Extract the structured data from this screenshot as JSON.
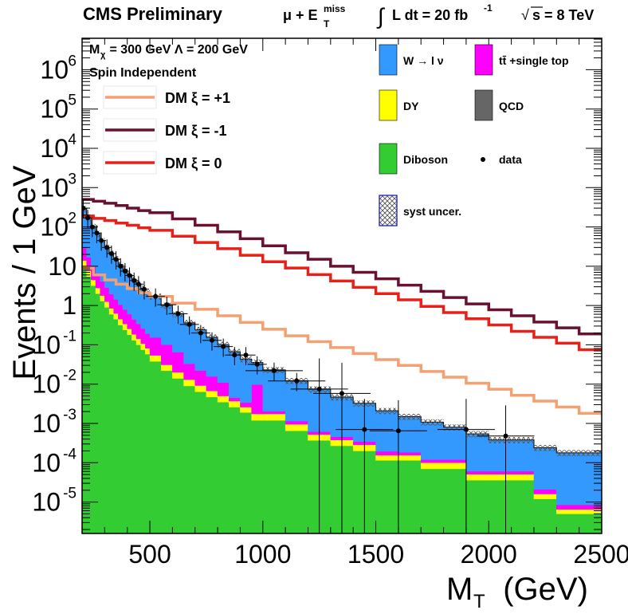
{
  "header": {
    "title": "CMS Preliminary",
    "channel_mu": "μ + E",
    "channel_sub": "T",
    "channel_sup": "miss",
    "lumi_integral": "∫",
    "lumi_text": "L dt = 20 fb",
    "lumi_sup": "-1",
    "energy_sqrt": "√",
    "energy_text": "s = 8 TeV"
  },
  "annotations": {
    "mass_line": "M",
    "mass_sub": "χ",
    "mass_rest": " = 300 GeV Λ = 200 GeV",
    "spin": "Spin Independent"
  },
  "legend_left": [
    {
      "label": "DM  ξ = +1",
      "color": "#f4a070"
    },
    {
      "label": "DM  ξ = -1",
      "color": "#6b1030"
    },
    {
      "label": "DM  ξ = 0",
      "color": "#e8201a"
    }
  ],
  "legend_right": [
    {
      "label": "W → l ν",
      "color": "#3399ff",
      "kind": "box"
    },
    {
      "label": "tt̄ +single top",
      "color": "#ff00ff",
      "kind": "box"
    },
    {
      "label": "DY",
      "color": "#ffff00",
      "kind": "box"
    },
    {
      "label": "QCD",
      "color": "#666666",
      "kind": "box"
    },
    {
      "label": "Diboson",
      "color": "#33cc33",
      "kind": "box"
    },
    {
      "label": "data",
      "color": "#000000",
      "kind": "marker"
    },
    {
      "label": "syst uncer.",
      "color": "#2b2bbf",
      "kind": "hatch"
    }
  ],
  "chart_data": {
    "type": "bar",
    "title": "CMS Preliminary",
    "xlabel": "M",
    "xlabel_sub": "T",
    "xlabel_unit": "  (GeV)",
    "ylabel": "Events / 1 GeV",
    "xlim": [
      200,
      2500
    ],
    "ylim_log10": [
      -5.8,
      6.8
    ],
    "x_ticks": [
      "500",
      "1000",
      "1500",
      "2000",
      "2500"
    ],
    "x_tick_values": [
      500,
      1000,
      1500,
      2000,
      2500
    ],
    "y_ticks": [
      {
        "base": "10",
        "exp": "6",
        "value": 6
      },
      {
        "base": "10",
        "exp": "5",
        "value": 5
      },
      {
        "base": "10",
        "exp": "4",
        "value": 4
      },
      {
        "base": "10",
        "exp": "3",
        "value": 3
      },
      {
        "base": "10",
        "exp": "2",
        "value": 2
      },
      {
        "base": "10",
        "exp": "",
        "value": 1
      },
      {
        "base": "1",
        "exp": "",
        "value": 0
      },
      {
        "base": "10",
        "exp": "-1",
        "value": -1
      },
      {
        "base": "10",
        "exp": "-2",
        "value": -2
      },
      {
        "base": "10",
        "exp": "-3",
        "value": -3
      },
      {
        "base": "10",
        "exp": "-4",
        "value": -4
      },
      {
        "base": "10",
        "exp": "-5",
        "value": -5
      }
    ],
    "bin_edges": [
      200,
      220,
      240,
      260,
      280,
      300,
      320,
      340,
      360,
      380,
      400,
      420,
      440,
      460,
      480,
      500,
      550,
      600,
      650,
      700,
      750,
      800,
      850,
      900,
      950,
      1000,
      1100,
      1200,
      1300,
      1400,
      1500,
      1600,
      1700,
      1800,
      1900,
      2000,
      2200,
      2300,
      2500
    ],
    "stack": [
      {
        "name": "Diboson",
        "color": "#33cc33",
        "values": [
          10,
          5.5,
          3.2,
          2,
          1.3,
          0.9,
          0.6,
          0.45,
          0.32,
          0.24,
          0.18,
          0.13,
          0.1,
          0.075,
          0.058,
          0.038,
          0.022,
          0.014,
          0.009,
          0.0064,
          0.0047,
          0.0035,
          0.0026,
          0.0019,
          0.0012,
          0.0012,
          0.00065,
          0.00037,
          0.00027,
          0.0002,
          0.000115,
          0.000115,
          7e-05,
          7e-05,
          3.6e-05,
          3.6e-05,
          1.2e-05,
          5e-06
        ]
      },
      {
        "name": "DY",
        "color": "#ffff00",
        "values": [
          4,
          2.2,
          1.3,
          0.8,
          0.5,
          0.35,
          0.25,
          0.18,
          0.13,
          0.1,
          0.075,
          0.055,
          0.042,
          0.032,
          0.024,
          0.016,
          0.009,
          0.006,
          0.004,
          0.0028,
          0.002,
          0.0015,
          0.0011,
          0.0007,
          0.00055,
          0.00055,
          0.0003,
          0.00015,
          0.00011,
          8.5e-05,
          4e-05,
          4e-05,
          3e-05,
          3e-05,
          1.5e-05,
          1.5e-05,
          4e-06,
          1.5e-06
        ]
      },
      {
        "name": "tt̄ +single top",
        "color": "#ff00ff",
        "values": [
          15,
          9,
          5.5,
          3.5,
          2.3,
          1.6,
          1.1,
          0.8,
          0.6,
          0.45,
          0.35,
          0.26,
          0.2,
          0.15,
          0.11,
          0.1,
          0.07,
          0.045,
          0.02,
          0.013,
          0.009,
          0.006,
          0.0008,
          0.0008,
          0.008,
          0.0003,
          0.0002,
          0.0001,
          8e-05,
          6e-05,
          4e-05,
          3e-05,
          2e-05,
          2e-05,
          1e-05,
          1e-05,
          5e-06,
          2e-06
        ]
      },
      {
        "name": "W → l ν",
        "color": "#3399ff",
        "values": [
          250,
          150,
          90,
          60,
          40,
          27,
          19,
          14,
          10,
          7.5,
          5.5,
          4.2,
          3.2,
          2.5,
          1.9,
          1.55,
          0.9,
          0.55,
          0.33,
          0.22,
          0.14,
          0.09,
          0.062,
          0.04,
          0.026,
          0.021,
          0.011,
          0.0068,
          0.0042,
          0.0029,
          0.0019,
          0.0013,
          0.00096,
          0.00068,
          0.00048,
          0.00032,
          0.00022,
          0.00017
        ]
      },
      {
        "name": "QCD",
        "color": "#666666",
        "values": [
          6,
          3,
          1.5,
          0.7,
          0.35,
          0.18,
          0.09,
          0.05,
          0.03,
          0.02,
          0.012,
          0.008,
          0.005,
          0.003,
          0.002,
          0.001,
          0.0005,
          0.0003,
          0.0002,
          0.0001,
          0,
          0,
          0,
          0,
          0,
          0,
          0,
          0,
          0,
          0,
          0,
          0,
          0,
          0,
          0,
          0,
          0,
          0
        ]
      }
    ],
    "syst_rel": 0.18,
    "data": [
      {
        "x": 205,
        "y": 300
      },
      {
        "x": 225,
        "y": 170
      },
      {
        "x": 245,
        "y": 100
      },
      {
        "x": 265,
        "y": 70
      },
      {
        "x": 285,
        "y": 45
      },
      {
        "x": 310,
        "y": 30
      },
      {
        "x": 330,
        "y": 21
      },
      {
        "x": 350,
        "y": 15
      },
      {
        "x": 370,
        "y": 10
      },
      {
        "x": 390,
        "y": 7.5
      },
      {
        "x": 410,
        "y": 5.8
      },
      {
        "x": 430,
        "y": 4.3
      },
      {
        "x": 450,
        "y": 3.5
      },
      {
        "x": 475,
        "y": 2.6
      },
      {
        "x": 525,
        "y": 1.7
      },
      {
        "x": 575,
        "y": 1.05
      },
      {
        "x": 625,
        "y": 0.62
      },
      {
        "x": 675,
        "y": 0.33
      },
      {
        "x": 725,
        "y": 0.2
      },
      {
        "x": 775,
        "y": 0.13
      },
      {
        "x": 825,
        "y": 0.09
      },
      {
        "x": 875,
        "y": 0.055
      },
      {
        "x": 925,
        "y": 0.055
      },
      {
        "x": 975,
        "y": 0.032
      },
      {
        "x": 1050,
        "y": 0.022
      },
      {
        "x": 1150,
        "y": 0.012
      },
      {
        "x": 1250,
        "y": 0.0075
      },
      {
        "x": 1350,
        "y": 0.0058
      },
      {
        "x": 1450,
        "y": 0.0007
      },
      {
        "x": 1600,
        "y": 0.00065
      },
      {
        "x": 1900,
        "y": 0.0007
      },
      {
        "x": 2075,
        "y": 0.00048
      }
    ],
    "signal": [
      {
        "name": "DM  ξ = +1",
        "color": "#f4a070",
        "edges": [
          200,
          250,
          300,
          350,
          400,
          450,
          500,
          600,
          700,
          800,
          900,
          1000,
          1100,
          1200,
          1300,
          1400,
          1500,
          1600,
          1700,
          1800,
          1900,
          2000,
          2100,
          2200,
          2300,
          2400,
          2500
        ],
        "values": [
          9,
          6,
          4.5,
          3.5,
          2.7,
          2.1,
          1.7,
          1.15,
          0.8,
          0.55,
          0.37,
          0.25,
          0.17,
          0.12,
          0.085,
          0.06,
          0.042,
          0.03,
          0.021,
          0.015,
          0.0105,
          0.0074,
          0.0052,
          0.0037,
          0.0026,
          0.0018
        ]
      },
      {
        "name": "DM  ξ = -1",
        "color": "#6b1030",
        "edges": [
          200,
          250,
          300,
          350,
          400,
          450,
          500,
          600,
          700,
          800,
          900,
          1000,
          1100,
          1200,
          1300,
          1400,
          1500,
          1600,
          1700,
          1800,
          1900,
          2000,
          2100,
          2200,
          2300,
          2400,
          2500
        ],
        "values": [
          500,
          450,
          400,
          350,
          300,
          260,
          230,
          160,
          110,
          75,
          50,
          33,
          22,
          15,
          10,
          7,
          4.8,
          3.3,
          2.3,
          1.6,
          1.1,
          0.78,
          0.55,
          0.38,
          0.27,
          0.19
        ]
      },
      {
        "name": "DM  ξ = 0",
        "color": "#e8201a",
        "edges": [
          200,
          250,
          300,
          350,
          400,
          450,
          500,
          600,
          700,
          800,
          900,
          1000,
          1100,
          1200,
          1300,
          1400,
          1500,
          1600,
          1700,
          1800,
          1900,
          2000,
          2100,
          2200,
          2300,
          2400,
          2500
        ],
        "values": [
          190,
          165,
          145,
          125,
          110,
          95,
          82,
          58,
          40,
          28,
          19,
          13,
          9,
          6.1,
          4.2,
          2.9,
          2,
          1.4,
          0.95,
          0.66,
          0.46,
          0.32,
          0.22,
          0.155,
          0.11,
          0.075
        ]
      }
    ]
  }
}
